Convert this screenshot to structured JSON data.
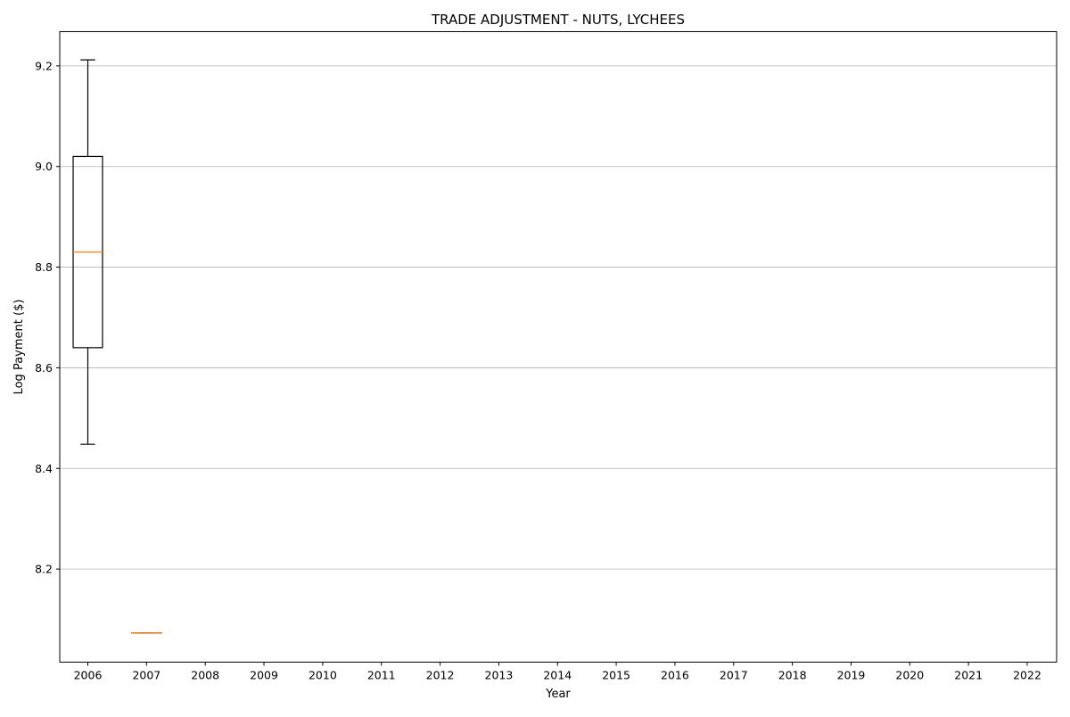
{
  "chart_data": {
    "type": "box",
    "title": "TRADE ADJUSTMENT - NUTS, LYCHEES",
    "xlabel": "Year",
    "ylabel": "Log Payment ($)",
    "categories": [
      "2006",
      "2007",
      "2008",
      "2009",
      "2010",
      "2011",
      "2012",
      "2013",
      "2014",
      "2015",
      "2016",
      "2017",
      "2018",
      "2019",
      "2020",
      "2021",
      "2022"
    ],
    "ylim": [
      8.015,
      9.268
    ],
    "yticks": [
      8.2,
      8.4,
      8.6,
      8.8,
      9.0,
      9.2
    ],
    "grid": "y",
    "boxes": [
      {
        "category": "2006",
        "whisker_low": 8.448,
        "q1": 8.64,
        "median": 8.83,
        "q3": 9.02,
        "whisker_high": 9.212
      },
      {
        "category": "2007",
        "whisker_low": 8.073,
        "q1": 8.073,
        "median": 8.073,
        "q3": 8.073,
        "whisker_high": 8.073
      }
    ],
    "colors": {
      "box": "#000000",
      "median": "#ff7f0e",
      "grid": "#b0b0b0"
    }
  }
}
